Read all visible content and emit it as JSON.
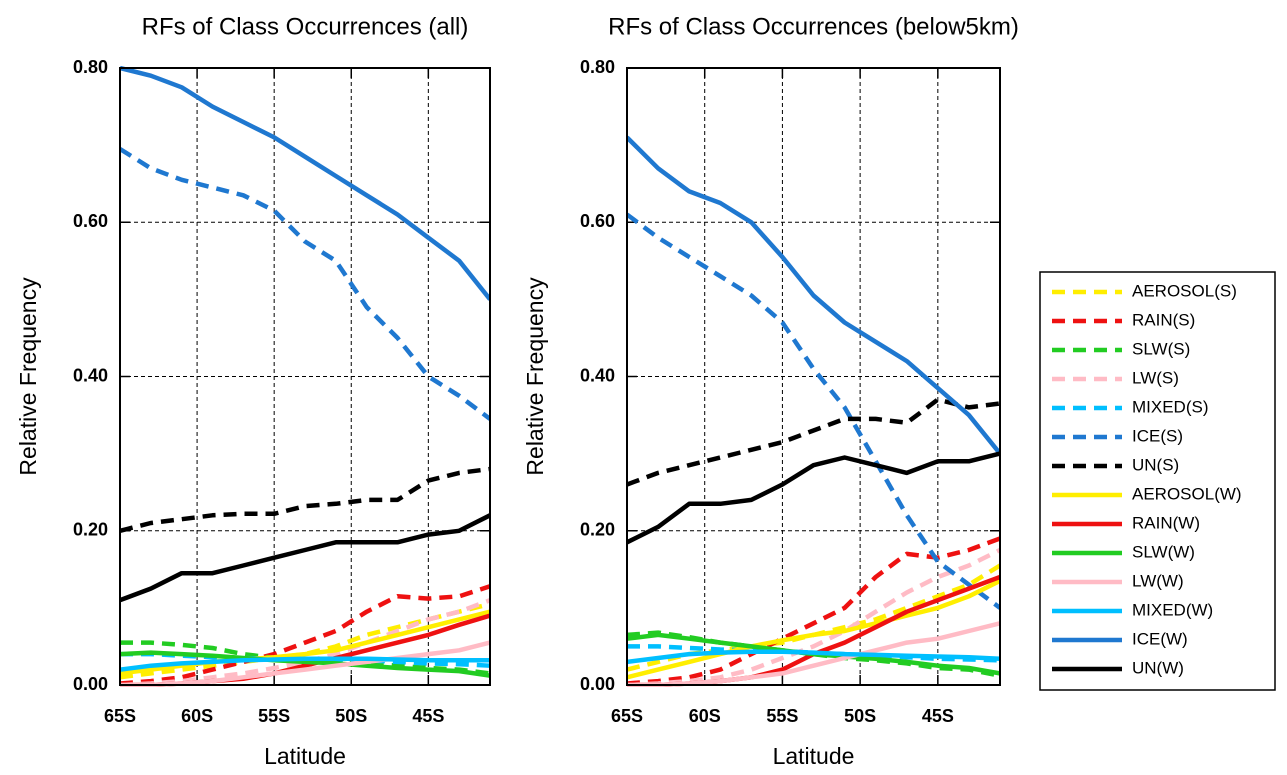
{
  "chart_data": [
    {
      "type": "line",
      "title": "RFs of Class Occurrences (all)",
      "xlabel": "Latitude",
      "ylabel": "Relative Frequency",
      "x": [
        -65,
        -63,
        -61,
        -59,
        -57,
        -55,
        -53,
        -51,
        -49,
        -47,
        -45,
        -43,
        -41
      ],
      "xlim": [
        -65,
        -41
      ],
      "xticks": [
        {
          "value": -65,
          "label": "65S"
        },
        {
          "value": -60,
          "label": "60S"
        },
        {
          "value": -55,
          "label": "55S"
        },
        {
          "value": -50,
          "label": "50S"
        },
        {
          "value": -45,
          "label": "45S"
        }
      ],
      "ylim": [
        0,
        0.8
      ],
      "yticks": [
        {
          "value": 0,
          "label": "0.00"
        },
        {
          "value": 0.2,
          "label": "0.20"
        },
        {
          "value": 0.4,
          "label": "0.40"
        },
        {
          "value": 0.6,
          "label": "0.60"
        },
        {
          "value": 0.8,
          "label": "0.80"
        }
      ],
      "grid": true,
      "legend": "right",
      "series": [
        {
          "name": "AEROSOL(S)",
          "color": "#ffee00",
          "dashed": true,
          "values": [
            0.01,
            0.015,
            0.02,
            0.025,
            0.03,
            0.035,
            0.04,
            0.05,
            0.065,
            0.075,
            0.085,
            0.095,
            0.105
          ]
        },
        {
          "name": "RAIN(S)",
          "color": "#ee1111",
          "dashed": true,
          "values": [
            0.002,
            0.005,
            0.01,
            0.02,
            0.03,
            0.04,
            0.055,
            0.07,
            0.095,
            0.115,
            0.112,
            0.115,
            0.128
          ]
        },
        {
          "name": "SLW(S)",
          "color": "#22cc22",
          "dashed": true,
          "values": [
            0.055,
            0.055,
            0.052,
            0.048,
            0.04,
            0.035,
            0.032,
            0.03,
            0.028,
            0.025,
            0.022,
            0.02,
            0.015
          ]
        },
        {
          "name": "LW(S)",
          "color": "#ffbbc5",
          "dashed": true,
          "values": [
            0.0,
            0.002,
            0.005,
            0.01,
            0.015,
            0.022,
            0.03,
            0.04,
            0.055,
            0.07,
            0.085,
            0.095,
            0.11
          ]
        },
        {
          "name": "MIXED(S)",
          "color": "#00bfff",
          "dashed": true,
          "values": [
            0.04,
            0.04,
            0.038,
            0.036,
            0.035,
            0.034,
            0.034,
            0.033,
            0.032,
            0.03,
            0.028,
            0.027,
            0.025
          ]
        },
        {
          "name": "ICE(S)",
          "color": "#1f78d0",
          "dashed": true,
          "values": [
            0.695,
            0.67,
            0.655,
            0.645,
            0.635,
            0.615,
            0.575,
            0.55,
            0.49,
            0.45,
            0.4,
            0.375,
            0.345
          ]
        },
        {
          "name": "UN(S)",
          "color": "#000000",
          "dashed": true,
          "values": [
            0.2,
            0.21,
            0.215,
            0.22,
            0.222,
            0.222,
            0.232,
            0.235,
            0.24,
            0.24,
            0.265,
            0.275,
            0.28
          ]
        },
        {
          "name": "AEROSOL(W)",
          "color": "#ffee00",
          "dashed": false,
          "values": [
            0.015,
            0.02,
            0.025,
            0.03,
            0.033,
            0.036,
            0.04,
            0.045,
            0.055,
            0.065,
            0.075,
            0.085,
            0.095
          ]
        },
        {
          "name": "RAIN(W)",
          "color": "#ee1111",
          "dashed": false,
          "values": [
            0.0,
            0.0,
            0.002,
            0.005,
            0.008,
            0.015,
            0.025,
            0.035,
            0.045,
            0.055,
            0.065,
            0.078,
            0.09
          ]
        },
        {
          "name": "SLW(W)",
          "color": "#22cc22",
          "dashed": false,
          "values": [
            0.04,
            0.042,
            0.04,
            0.038,
            0.035,
            0.032,
            0.03,
            0.028,
            0.025,
            0.022,
            0.02,
            0.018,
            0.012
          ]
        },
        {
          "name": "LW(W)",
          "color": "#ffbbc5",
          "dashed": false,
          "values": [
            0.0,
            0.0,
            0.002,
            0.005,
            0.01,
            0.015,
            0.02,
            0.025,
            0.03,
            0.035,
            0.04,
            0.045,
            0.055
          ]
        },
        {
          "name": "MIXED(W)",
          "color": "#00bfff",
          "dashed": false,
          "values": [
            0.02,
            0.025,
            0.028,
            0.03,
            0.032,
            0.033,
            0.034,
            0.034,
            0.034,
            0.033,
            0.032,
            0.032,
            0.032
          ]
        },
        {
          "name": "ICE(W)",
          "color": "#1f78d0",
          "dashed": false,
          "values": [
            0.8,
            0.79,
            0.775,
            0.75,
            0.73,
            0.71,
            0.685,
            0.66,
            0.635,
            0.61,
            0.58,
            0.55,
            0.5
          ]
        },
        {
          "name": "UN(W)",
          "color": "#000000",
          "dashed": false,
          "values": [
            0.11,
            0.125,
            0.145,
            0.145,
            0.155,
            0.165,
            0.175,
            0.185,
            0.185,
            0.185,
            0.195,
            0.2,
            0.22
          ]
        }
      ]
    },
    {
      "type": "line",
      "title": "RFs of Class Occurrences (below5km)",
      "xlabel": "Latitude",
      "ylabel": "Relative Frequency",
      "x": [
        -65,
        -63,
        -61,
        -59,
        -57,
        -55,
        -53,
        -51,
        -49,
        -47,
        -45,
        -43,
        -41
      ],
      "xlim": [
        -65,
        -41
      ],
      "xticks": [
        {
          "value": -65,
          "label": "65S"
        },
        {
          "value": -60,
          "label": "60S"
        },
        {
          "value": -55,
          "label": "55S"
        },
        {
          "value": -50,
          "label": "50S"
        },
        {
          "value": -45,
          "label": "45S"
        }
      ],
      "ylim": [
        0,
        0.8
      ],
      "yticks": [
        {
          "value": 0,
          "label": "0.00"
        },
        {
          "value": 0.2,
          "label": "0.20"
        },
        {
          "value": 0.4,
          "label": "0.40"
        },
        {
          "value": 0.6,
          "label": "0.60"
        },
        {
          "value": 0.8,
          "label": "0.80"
        }
      ],
      "grid": true,
      "series": [
        {
          "name": "AEROSOL(S)",
          "color": "#ffee00",
          "dashed": true,
          "values": [
            0.02,
            0.03,
            0.04,
            0.045,
            0.05,
            0.055,
            0.065,
            0.075,
            0.085,
            0.1,
            0.115,
            0.13,
            0.155
          ]
        },
        {
          "name": "RAIN(S)",
          "color": "#ee1111",
          "dashed": true,
          "values": [
            0.002,
            0.005,
            0.01,
            0.02,
            0.04,
            0.06,
            0.08,
            0.1,
            0.14,
            0.17,
            0.165,
            0.175,
            0.19
          ]
        },
        {
          "name": "SLW(S)",
          "color": "#22cc22",
          "dashed": true,
          "values": [
            0.065,
            0.068,
            0.062,
            0.055,
            0.05,
            0.045,
            0.04,
            0.035,
            0.032,
            0.028,
            0.022,
            0.02,
            0.012
          ]
        },
        {
          "name": "LW(S)",
          "color": "#ffbbc5",
          "dashed": true,
          "values": [
            0.0,
            0.002,
            0.005,
            0.01,
            0.02,
            0.035,
            0.05,
            0.07,
            0.095,
            0.12,
            0.14,
            0.155,
            0.175
          ]
        },
        {
          "name": "MIXED(S)",
          "color": "#00bfff",
          "dashed": true,
          "values": [
            0.05,
            0.05,
            0.048,
            0.046,
            0.045,
            0.044,
            0.042,
            0.04,
            0.038,
            0.036,
            0.034,
            0.033,
            0.032
          ]
        },
        {
          "name": "ICE(S)",
          "color": "#1f78d0",
          "dashed": true,
          "values": [
            0.61,
            0.58,
            0.555,
            0.53,
            0.505,
            0.47,
            0.41,
            0.36,
            0.29,
            0.22,
            0.16,
            0.13,
            0.1
          ]
        },
        {
          "name": "UN(S)",
          "color": "#000000",
          "dashed": true,
          "values": [
            0.26,
            0.275,
            0.285,
            0.295,
            0.305,
            0.315,
            0.33,
            0.345,
            0.345,
            0.34,
            0.37,
            0.36,
            0.365
          ]
        },
        {
          "name": "AEROSOL(W)",
          "color": "#ffee00",
          "dashed": false,
          "values": [
            0.01,
            0.02,
            0.03,
            0.04,
            0.05,
            0.058,
            0.065,
            0.07,
            0.08,
            0.09,
            0.1,
            0.115,
            0.135
          ]
        },
        {
          "name": "RAIN(W)",
          "color": "#ee1111",
          "dashed": false,
          "values": [
            0.0,
            0.0,
            0.002,
            0.005,
            0.01,
            0.02,
            0.04,
            0.055,
            0.075,
            0.095,
            0.11,
            0.125,
            0.14
          ]
        },
        {
          "name": "SLW(W)",
          "color": "#22cc22",
          "dashed": false,
          "values": [
            0.06,
            0.065,
            0.06,
            0.055,
            0.05,
            0.045,
            0.04,
            0.037,
            0.034,
            0.03,
            0.025,
            0.022,
            0.015
          ]
        },
        {
          "name": "LW(W)",
          "color": "#ffbbc5",
          "dashed": false,
          "values": [
            0.0,
            0.0,
            0.002,
            0.005,
            0.01,
            0.015,
            0.025,
            0.035,
            0.045,
            0.055,
            0.06,
            0.07,
            0.08
          ]
        },
        {
          "name": "MIXED(W)",
          "color": "#00bfff",
          "dashed": false,
          "values": [
            0.03,
            0.035,
            0.04,
            0.042,
            0.043,
            0.043,
            0.042,
            0.04,
            0.039,
            0.038,
            0.037,
            0.036,
            0.034
          ]
        },
        {
          "name": "ICE(W)",
          "color": "#1f78d0",
          "dashed": false,
          "values": [
            0.71,
            0.67,
            0.64,
            0.625,
            0.6,
            0.555,
            0.505,
            0.47,
            0.445,
            0.42,
            0.385,
            0.35,
            0.3
          ]
        },
        {
          "name": "UN(W)",
          "color": "#000000",
          "dashed": false,
          "values": [
            0.185,
            0.205,
            0.235,
            0.235,
            0.24,
            0.26,
            0.285,
            0.295,
            0.285,
            0.275,
            0.29,
            0.29,
            0.3
          ]
        }
      ]
    }
  ]
}
